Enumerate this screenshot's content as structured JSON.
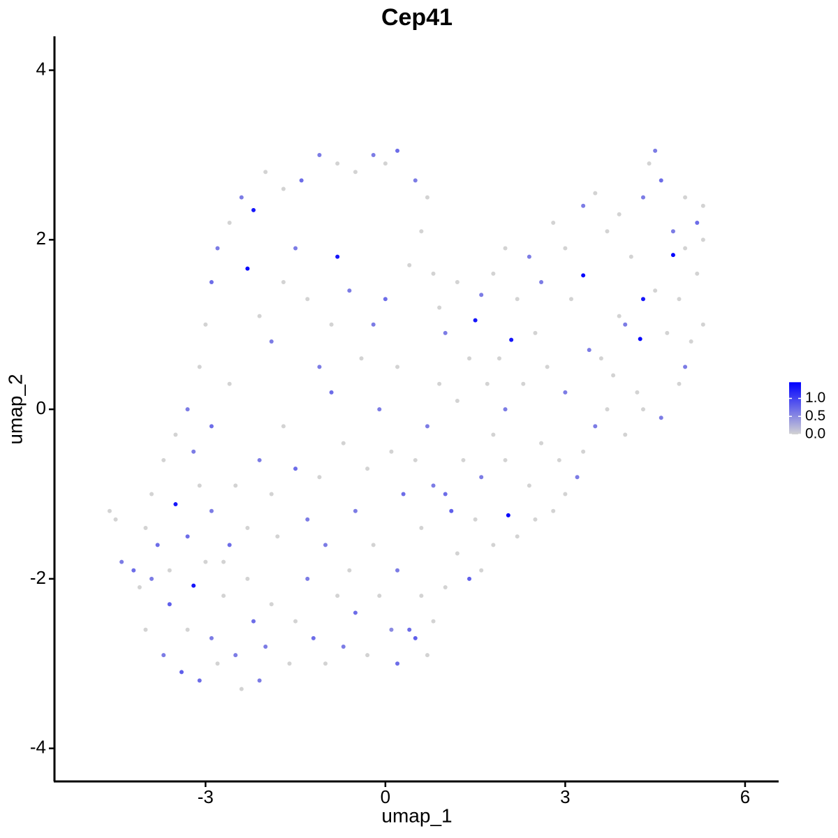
{
  "chart_data": {
    "type": "scatter",
    "title": "Cep41",
    "x_label": "umap_1",
    "y_label": "umap_2",
    "xlim": [
      -5.52,
      6.56
    ],
    "ylim": [
      -4.39,
      4.4
    ],
    "xticks": [
      -3,
      0,
      3,
      6
    ],
    "yticks": [
      -4,
      -2,
      0,
      2,
      4
    ],
    "grid": false,
    "color_low": "#d3d3d3",
    "color_high": "#0000ff",
    "color_lim": [
      0,
      1.45
    ],
    "color_ticks": [
      {
        "value": 0,
        "label": "0.0"
      },
      {
        "value": 0.5,
        "label": "0.5"
      },
      {
        "value": 1,
        "label": "1.0"
      }
    ],
    "x": [
      -4.6,
      -4.5,
      -4.4,
      -4.2,
      -4.1,
      -4.0,
      -3.9,
      -3.8,
      -3.7,
      -3.6,
      -3.5,
      -3.4,
      -3.3,
      -3.2,
      -3.1,
      -3.0,
      -2.9,
      -2.8,
      -2.7,
      -2.6,
      -2.5,
      -2.4,
      -2.3,
      -2.2,
      -2.1,
      -2.0,
      -1.9,
      -1.8,
      -1.6,
      -1.5,
      -1.3,
      -1.2,
      -1.0,
      -0.8,
      -0.7,
      -0.5,
      -0.3,
      -0.1,
      0.1,
      0.2,
      0.4,
      0.5,
      0.6,
      0.7,
      0.8,
      1.0,
      1.2,
      1.4,
      1.6,
      1.8,
      2.05,
      2.2,
      2.5,
      2.8,
      3.0,
      3.2,
      3.3,
      3.5,
      3.7,
      4.0,
      4.3,
      4.6,
      4.9,
      5.0,
      5.1,
      5.3,
      5.2,
      5.3,
      5.3,
      5.2,
      5.0,
      4.8,
      4.8,
      4.6,
      4.5,
      4.4,
      4.3,
      4.3,
      4.25,
      4.1,
      3.9,
      3.7,
      3.5,
      3.3,
      3.3,
      3.1,
      3.0,
      2.8,
      2.6,
      2.4,
      2.2,
      2.1,
      2.0,
      1.8,
      1.6,
      1.5,
      1.4,
      1.2,
      1.0,
      0.9,
      3.4,
      3.8,
      4.0,
      4.5,
      4.7,
      2.7,
      3.0,
      2.5,
      2.3,
      1.9,
      0.7,
      0.5,
      0.2,
      0.0,
      -0.2,
      -0.5,
      -0.8,
      -1.1,
      -1.4,
      -1.7,
      -2.0,
      -2.2,
      -2.4,
      -2.6,
      -2.8,
      -2.9,
      -3.0,
      -3.1,
      -3.3,
      -3.5,
      -3.7,
      -3.9,
      -3.2,
      -2.9,
      -2.6,
      -2.3,
      -2.1,
      -1.9,
      -1.7,
      -1.5,
      -1.3,
      -1.1,
      -0.9,
      -0.8,
      -0.6,
      -0.4,
      -0.2,
      0.0,
      0.2,
      0.4,
      0.6,
      0.8,
      0.9,
      0.7,
      0.5,
      0.3,
      0.1,
      -0.1,
      -0.3,
      -0.5,
      -0.7,
      -0.9,
      -1.1,
      -1.3,
      -1.5,
      -1.7,
      -1.9,
      -2.1,
      -2.3,
      -2.5,
      -2.7,
      -2.9,
      -3.1,
      -3.3,
      -3.6,
      -4.0,
      -1.0,
      -0.6,
      -0.2,
      0.2,
      0.6,
      1.0,
      1.3,
      1.6,
      1.8,
      1.1,
      0.8,
      1.5,
      2.0,
      2.4,
      2.6,
      2.9,
      3.6,
      4.2,
      4.9,
      5.0,
      3.9,
      2.0,
      1.2,
      1.7
    ],
    "y": [
      -1.2,
      -1.3,
      -1.8,
      -1.9,
      -2.1,
      -2.6,
      -2.0,
      -1.6,
      -2.9,
      -2.3,
      -1.12,
      -3.1,
      -2.6,
      -2.08,
      -3.2,
      -1.8,
      -2.7,
      -3.0,
      -2.2,
      -1.6,
      -2.9,
      -3.3,
      -2.0,
      -2.5,
      -3.2,
      -2.8,
      -2.3,
      -1.5,
      -3.0,
      -2.5,
      -2.0,
      -2.7,
      -3.0,
      -2.2,
      -2.8,
      -2.4,
      -2.9,
      -2.2,
      -2.6,
      -3.0,
      -2.6,
      -2.7,
      -2.2,
      -2.9,
      -2.5,
      -2.1,
      -1.7,
      -2.0,
      -1.9,
      -1.6,
      -1.25,
      -1.5,
      -1.3,
      -1.2,
      -1.0,
      -0.8,
      -0.5,
      -0.2,
      0.0,
      -0.3,
      0.0,
      -0.1,
      0.3,
      0.5,
      0.8,
      1.0,
      1.6,
      2.0,
      2.4,
      2.2,
      2.5,
      2.1,
      1.82,
      2.7,
      3.05,
      2.9,
      2.5,
      1.3,
      0.83,
      1.8,
      2.3,
      2.1,
      2.55,
      2.4,
      1.58,
      1.3,
      1.9,
      2.2,
      1.5,
      1.8,
      1.3,
      0.82,
      1.9,
      1.6,
      1.35,
      1.05,
      0.6,
      1.5,
      0.9,
      1.2,
      0.7,
      0.4,
      1.0,
      1.4,
      0.9,
      0.5,
      0.2,
      0.9,
      0.3,
      0.6,
      2.5,
      2.7,
      3.05,
      2.9,
      3.0,
      2.8,
      2.9,
      3.0,
      2.7,
      2.6,
      2.8,
      2.35,
      2.5,
      2.2,
      1.9,
      1.5,
      1.0,
      0.5,
      0.0,
      -0.3,
      -0.6,
      -1.0,
      -0.5,
      -0.2,
      0.3,
      1.66,
      1.1,
      0.8,
      1.5,
      1.9,
      1.3,
      0.5,
      1.0,
      1.8,
      1.4,
      0.6,
      1.0,
      1.3,
      0.5,
      1.7,
      2.1,
      1.6,
      0.3,
      -0.2,
      -0.6,
      -1.0,
      -0.5,
      0.0,
      -0.7,
      -1.2,
      -0.4,
      0.2,
      -0.8,
      -1.3,
      -0.7,
      -0.2,
      -1.0,
      -0.6,
      -1.4,
      -0.9,
      -1.8,
      -1.2,
      -0.9,
      -1.5,
      -1.9,
      -1.4,
      -1.6,
      -1.9,
      -1.6,
      -1.9,
      -1.4,
      -1.0,
      -0.6,
      -0.8,
      -0.3,
      -1.2,
      -0.9,
      -1.3,
      -0.6,
      -0.9,
      -0.4,
      -0.6,
      0.6,
      0.2,
      1.3,
      1.9,
      1.1,
      0.0,
      0.1,
      0.3
    ],
    "expression": [
      0,
      0,
      0.6,
      0.7,
      0,
      0,
      0.6,
      0.7,
      0.6,
      0.8,
      1.3,
      0.8,
      0,
      1.3,
      0.7,
      0,
      0.6,
      0,
      0,
      0.7,
      0.6,
      0,
      0,
      0.7,
      0.6,
      0.6,
      0,
      0,
      0,
      0,
      0.6,
      0.7,
      0,
      0,
      0.6,
      0.7,
      0,
      0,
      0.5,
      0.7,
      0.7,
      0.8,
      0,
      0,
      0,
      0,
      0,
      0.8,
      0,
      0,
      1.4,
      0,
      0,
      0,
      0,
      0.6,
      0,
      0.6,
      0,
      0,
      0,
      0.6,
      0,
      0.6,
      0,
      0,
      0,
      0,
      0,
      0.7,
      0,
      0.6,
      1.4,
      0.7,
      0.6,
      0,
      0.6,
      1.3,
      1.4,
      0,
      0,
      0,
      0,
      0.6,
      1.4,
      0,
      0,
      0,
      0.6,
      0.6,
      0,
      1.3,
      0,
      0,
      0.6,
      1.3,
      0,
      0,
      0.6,
      0,
      0.6,
      0,
      0.6,
      0,
      0,
      0,
      0.6,
      0,
      0,
      0,
      0,
      0.6,
      0.7,
      0,
      0.6,
      0,
      0,
      0.6,
      0.7,
      0,
      0,
      1.3,
      0.6,
      0,
      0.6,
      0.7,
      0,
      0,
      0.6,
      0,
      0,
      0,
      0.6,
      0.7,
      0,
      1.4,
      0,
      0.6,
      0,
      0.6,
      0,
      0.6,
      0,
      1.3,
      0.6,
      0,
      0.6,
      0.7,
      0,
      0,
      0,
      0,
      0,
      0.6,
      0,
      0.7,
      0,
      0.6,
      0,
      0.6,
      0,
      0.7,
      0,
      0.6,
      0.7,
      0,
      0,
      0.6,
      0,
      0,
      0,
      0.6,
      0,
      0.7,
      0,
      0,
      0.6,
      0,
      0,
      0.6,
      0,
      0.7,
      0,
      0.6,
      0,
      0.8,
      0.6,
      0,
      0,
      0,
      0,
      0,
      0,
      0,
      0,
      0,
      0,
      0.6,
      0,
      0
    ]
  }
}
